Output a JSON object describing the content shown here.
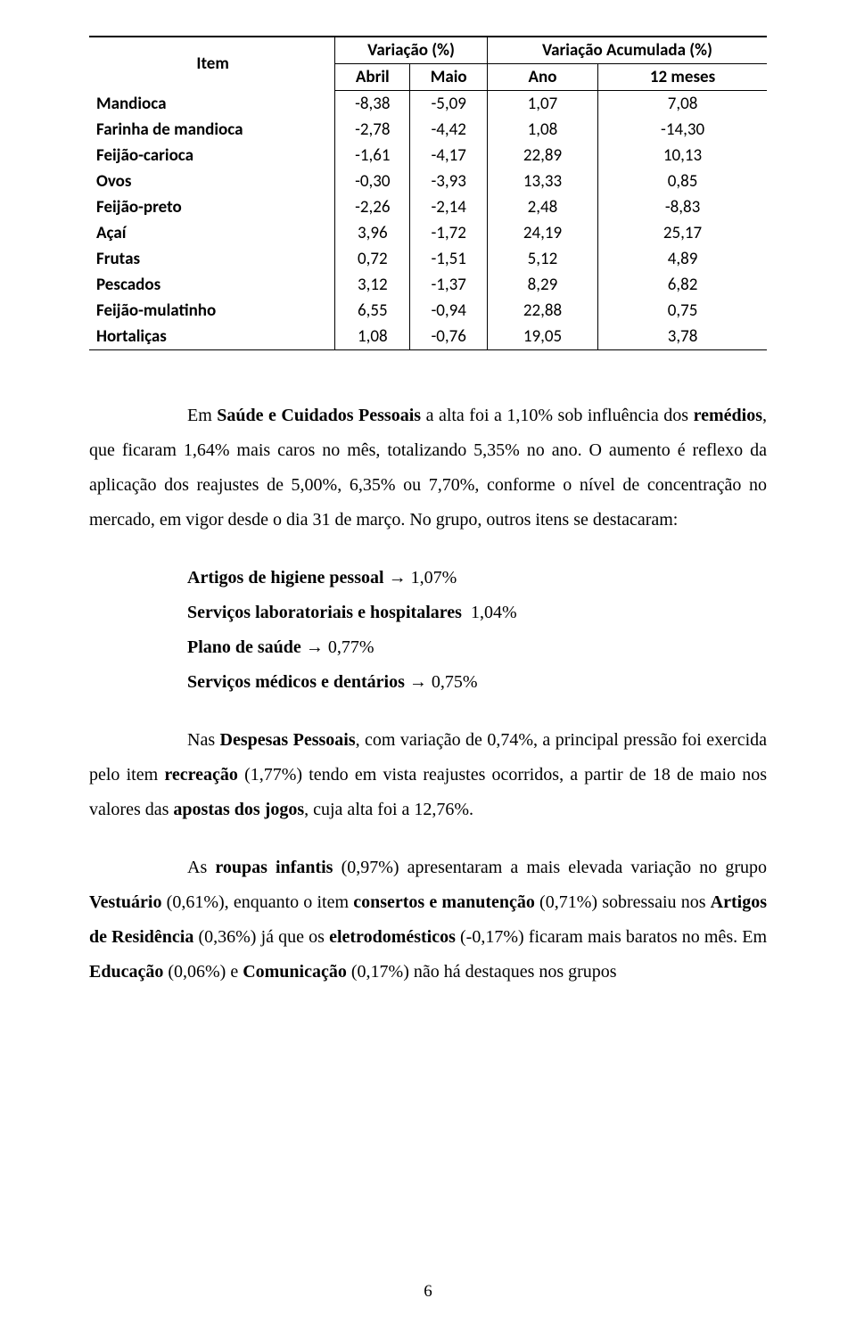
{
  "table": {
    "header": {
      "item": "Item",
      "group1": "Variação (%)",
      "group2": "Variação Acumulada (%)",
      "sub": [
        "Abril",
        "Maio",
        "Ano",
        "12 meses"
      ]
    },
    "rows": [
      {
        "name": "Mandioca",
        "abril": "-8,38",
        "maio": "-5,09",
        "ano": "1,07",
        "doze": "7,08"
      },
      {
        "name": "Farinha de mandioca",
        "abril": "-2,78",
        "maio": "-4,42",
        "ano": "1,08",
        "doze": "-14,30"
      },
      {
        "name": "Feijão-carioca",
        "abril": "-1,61",
        "maio": "-4,17",
        "ano": "22,89",
        "doze": "10,13"
      },
      {
        "name": "Ovos",
        "abril": "-0,30",
        "maio": "-3,93",
        "ano": "13,33",
        "doze": "0,85"
      },
      {
        "name": "Feijão-preto",
        "abril": "-2,26",
        "maio": "-2,14",
        "ano": "2,48",
        "doze": "-8,83"
      },
      {
        "name": "Açaí",
        "abril": "3,96",
        "maio": "-1,72",
        "ano": "24,19",
        "doze": "25,17"
      },
      {
        "name": "Frutas",
        "abril": "0,72",
        "maio": "-1,51",
        "ano": "5,12",
        "doze": "4,89"
      },
      {
        "name": "Pescados",
        "abril": "3,12",
        "maio": "-1,37",
        "ano": "8,29",
        "doze": "6,82"
      },
      {
        "name": "Feijão-mulatinho",
        "abril": "6,55",
        "maio": "-0,94",
        "ano": "22,88",
        "doze": "0,75"
      },
      {
        "name": "Hortaliças",
        "abril": "1,08",
        "maio": "-0,76",
        "ano": "19,05",
        "doze": "3,78"
      }
    ]
  },
  "paragraphs": {
    "p1_a": "Em ",
    "p1_b": "Saúde e Cuidados Pessoais",
    "p1_c": " a alta foi a 1,10% sob influência dos ",
    "p1_d": "remédios",
    "p1_e": ", que ficaram 1,64% mais caros no mês, totalizando 5,35% no ano. O aumento é reflexo da aplicação dos reajustes de 5,00%, 6,35% ou 7,70%, conforme o nível de concentração no mercado, em vigor desde o dia 31 de março. No grupo, outros itens se destacaram:",
    "list": [
      {
        "label": "Artigos de higiene pessoal",
        "arrow": "→",
        "value": "1,07%"
      },
      {
        "label": "Serviços laboratoriais e hospitalares",
        "arrow": "",
        "value": "1,04%"
      },
      {
        "label": "Plano de saúde",
        "arrow": "→",
        "value": "0,77%"
      },
      {
        "label": "Serviços médicos e dentários",
        "arrow": "→",
        "value": "0,75%"
      }
    ],
    "p2_a": "Nas ",
    "p2_b": "Despesas Pessoais",
    "p2_c": ", com variação de 0,74%, a principal pressão foi exercida pelo item ",
    "p2_d": "recreação",
    "p2_e": " (1,77%) tendo em vista reajustes ocorridos, a partir de 18 de maio nos valores das ",
    "p2_f": "apostas dos jogos",
    "p2_g": ", cuja alta foi a 12,76%.",
    "p3_a": "As ",
    "p3_b": "roupas infantis",
    "p3_c": " (0,97%)  apresentaram a mais elevada variação no grupo ",
    "p3_d": "Vestuário",
    "p3_e": " (0,61%), enquanto o item ",
    "p3_f": "consertos e manutenção",
    "p3_g": " (0,71%) sobressaiu nos ",
    "p3_h": "Artigos de Residência",
    "p3_i": " (0,36%) já que os ",
    "p3_j": "eletrodomésticos",
    "p3_k": " (-0,17%) ficaram mais baratos no mês. Em ",
    "p3_l": "Educação",
    "p3_m": " (0,06%) e ",
    "p3_n": "Comunicação",
    "p3_o": " (0,17%) não há destaques nos grupos"
  },
  "pageNumber": "6"
}
